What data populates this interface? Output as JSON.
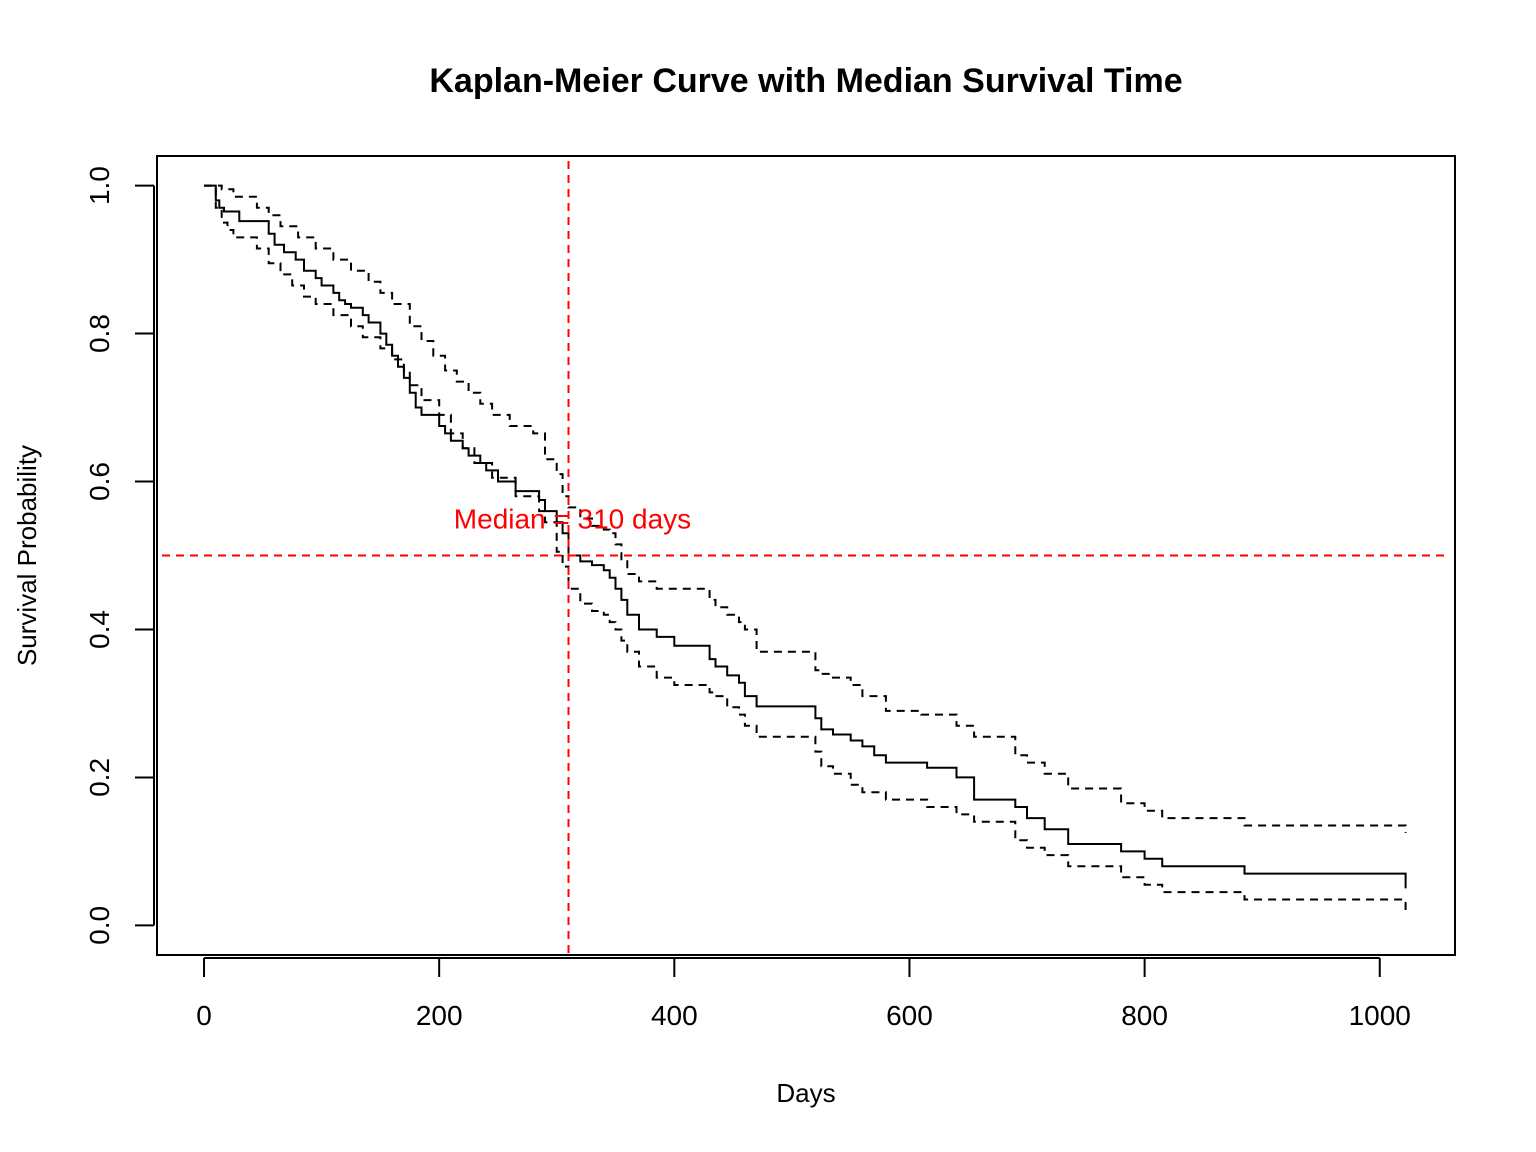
{
  "chart_data": {
    "type": "line",
    "title": "Kaplan-Meier Curve with Median Survival Time",
    "xlabel": "Days",
    "ylabel": "Survival Probability",
    "xlim": [
      -40,
      1064
    ],
    "ylim": [
      -0.04,
      1.04
    ],
    "xticks": [
      0,
      200,
      400,
      600,
      800,
      1000
    ],
    "xtick_labels": [
      "0",
      "200",
      "400",
      "600",
      "800",
      "1000"
    ],
    "yticks": [
      0.0,
      0.2,
      0.4,
      0.6,
      0.8,
      1.0
    ],
    "ytick_labels": [
      "0.0",
      "0.2",
      "0.4",
      "0.6",
      "0.8",
      "1.0"
    ],
    "grid": false,
    "legend": "none",
    "series": [
      {
        "style": "solid",
        "step": true,
        "color": "#000000",
        "x": [
          0,
          10,
          13,
          17,
          30,
          55,
          60,
          68,
          78,
          85,
          95,
          100,
          110,
          115,
          120,
          125,
          135,
          140,
          150,
          155,
          160,
          165,
          170,
          175,
          180,
          185,
          200,
          205,
          210,
          220,
          225,
          235,
          240,
          250,
          265,
          285,
          290,
          300,
          305,
          310,
          320,
          330,
          340,
          345,
          350,
          355,
          360,
          370,
          385,
          400,
          430,
          435,
          445,
          455,
          460,
          470,
          520,
          525,
          535,
          550,
          560,
          570,
          580,
          615,
          640,
          655,
          690,
          700,
          715,
          735,
          780,
          800,
          815,
          885,
          1022
        ],
        "y": [
          1.0,
          0.98,
          0.97,
          0.965,
          0.952,
          0.935,
          0.92,
          0.91,
          0.9,
          0.885,
          0.875,
          0.865,
          0.855,
          0.845,
          0.84,
          0.835,
          0.825,
          0.815,
          0.8,
          0.785,
          0.77,
          0.755,
          0.74,
          0.72,
          0.7,
          0.69,
          0.675,
          0.665,
          0.655,
          0.645,
          0.635,
          0.625,
          0.615,
          0.6,
          0.587,
          0.575,
          0.56,
          0.545,
          0.53,
          0.5,
          0.492,
          0.487,
          0.48,
          0.47,
          0.455,
          0.44,
          0.42,
          0.4,
          0.39,
          0.378,
          0.36,
          0.35,
          0.338,
          0.328,
          0.31,
          0.296,
          0.28,
          0.265,
          0.258,
          0.25,
          0.242,
          0.23,
          0.22,
          0.213,
          0.2,
          0.17,
          0.16,
          0.145,
          0.13,
          0.11,
          0.1,
          0.09,
          0.08,
          0.07,
          0.05
        ]
      },
      {
        "style": "dashed",
        "step": true,
        "color": "#000000",
        "x": [
          0,
          15,
          25,
          45,
          55,
          65,
          80,
          95,
          110,
          125,
          140,
          150,
          160,
          175,
          185,
          195,
          205,
          215,
          225,
          235,
          245,
          260,
          280,
          290,
          300,
          305,
          310,
          320,
          330,
          340,
          345,
          350,
          355,
          360,
          370,
          385,
          400,
          430,
          435,
          445,
          455,
          460,
          470,
          520,
          525,
          535,
          550,
          560,
          580,
          610,
          640,
          655,
          690,
          700,
          715,
          735,
          780,
          800,
          815,
          885,
          1022
        ],
        "y": [
          1.0,
          0.995,
          0.985,
          0.97,
          0.96,
          0.945,
          0.93,
          0.915,
          0.9,
          0.885,
          0.87,
          0.855,
          0.84,
          0.81,
          0.79,
          0.77,
          0.75,
          0.735,
          0.72,
          0.705,
          0.69,
          0.675,
          0.665,
          0.63,
          0.61,
          0.58,
          0.565,
          0.55,
          0.54,
          0.535,
          0.53,
          0.515,
          0.495,
          0.475,
          0.465,
          0.455,
          0.455,
          0.44,
          0.43,
          0.42,
          0.41,
          0.4,
          0.37,
          0.345,
          0.34,
          0.335,
          0.325,
          0.31,
          0.29,
          0.285,
          0.27,
          0.255,
          0.23,
          0.22,
          0.205,
          0.185,
          0.165,
          0.155,
          0.145,
          0.135,
          0.125
        ]
      },
      {
        "style": "dashed",
        "step": true,
        "color": "#000000",
        "x": [
          0,
          10,
          15,
          20,
          25,
          45,
          55,
          65,
          75,
          85,
          95,
          110,
          125,
          135,
          150,
          160,
          170,
          175,
          185,
          200,
          210,
          220,
          230,
          245,
          265,
          285,
          290,
          300,
          305,
          310,
          320,
          330,
          340,
          345,
          350,
          355,
          360,
          370,
          385,
          400,
          430,
          435,
          445,
          455,
          460,
          470,
          520,
          525,
          535,
          550,
          560,
          580,
          615,
          640,
          655,
          690,
          700,
          715,
          735,
          780,
          800,
          815,
          885,
          1022
        ],
        "y": [
          1.0,
          0.97,
          0.95,
          0.94,
          0.93,
          0.915,
          0.895,
          0.88,
          0.865,
          0.85,
          0.84,
          0.825,
          0.81,
          0.795,
          0.78,
          0.765,
          0.75,
          0.73,
          0.71,
          0.69,
          0.665,
          0.645,
          0.625,
          0.605,
          0.58,
          0.56,
          0.545,
          0.505,
          0.485,
          0.455,
          0.435,
          0.425,
          0.42,
          0.41,
          0.4,
          0.385,
          0.37,
          0.35,
          0.335,
          0.325,
          0.315,
          0.31,
          0.295,
          0.285,
          0.27,
          0.255,
          0.235,
          0.215,
          0.205,
          0.19,
          0.18,
          0.17,
          0.16,
          0.15,
          0.14,
          0.115,
          0.105,
          0.095,
          0.08,
          0.065,
          0.055,
          0.045,
          0.035,
          0.02
        ]
      }
    ],
    "reference_lines": [
      {
        "orientation": "vertical",
        "value": 310,
        "color": "#ff0000",
        "style": "dashed"
      },
      {
        "orientation": "horizontal",
        "value": 0.5,
        "color": "#ff0000",
        "style": "dashed"
      }
    ],
    "annotations": [
      {
        "text": "Median = 310 days",
        "x": 310,
        "y": 0.55,
        "color": "#ff0000"
      }
    ]
  }
}
